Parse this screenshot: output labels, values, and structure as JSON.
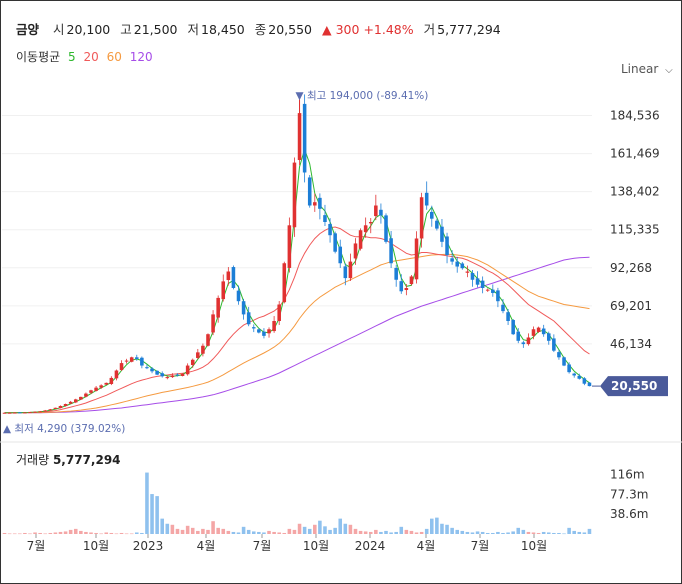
{
  "header": {
    "name": "금양",
    "open_label": "시",
    "open": "20,100",
    "high_label": "고",
    "high": "21,500",
    "low_label": "저",
    "low": "18,450",
    "close_label": "종",
    "close": "20,550",
    "change_icon": "triangle-up-icon",
    "change": "300",
    "change_pct": "+1.48%",
    "volume_label": "거",
    "volume": "5,777,294"
  },
  "ma_legend": {
    "label": "이동평균",
    "items": [
      {
        "period": "5",
        "color": "#2eb82e"
      },
      {
        "period": "20",
        "color": "#f05a5a"
      },
      {
        "period": "60",
        "color": "#f59a40"
      },
      {
        "period": "120",
        "color": "#a64de8"
      }
    ]
  },
  "scale_toggle": "Linear",
  "volume_header": {
    "label": "거래량",
    "value": "5,777,294"
  },
  "colors": {
    "up": "#e03131",
    "down": "#1c7ed6",
    "vol_up": "#f4a6a6",
    "vol_down": "#8fc1ee",
    "price_tag": "#4a5a9a",
    "annotation": "#5b6db0"
  },
  "chart_data": {
    "type": "candlestick",
    "y_ticks": [
      "184,536",
      "161,469",
      "138,402",
      "115,335",
      "92,268",
      "69,201",
      "46,134"
    ],
    "ylim": [
      0,
      200000
    ],
    "x_ticks": [
      "7월",
      "10월",
      "2023",
      "4월",
      "7월",
      "10월",
      "2024",
      "4월",
      "7월",
      "10월"
    ],
    "current_price": "20,550",
    "high_annotation": "최고 194,000 (-89.41%)",
    "low_annotation": "최저 4,290 (379.02%)",
    "volume_ticks": [
      "116m",
      "77.3m",
      "38.6m"
    ],
    "close_series": [
      4400,
      4400,
      4500,
      4500,
      4600,
      4800,
      5000,
      5300,
      5800,
      6500,
      7400,
      8500,
      9700,
      11000,
      12500,
      14000,
      16000,
      18000,
      19600,
      21000,
      22500,
      25500,
      30000,
      34500,
      36000,
      38000,
      37000,
      33000,
      31500,
      29500,
      27500,
      26500,
      26000,
      27000,
      27500,
      28000,
      33000,
      36500,
      41000,
      45000,
      52000,
      64000,
      74000,
      84000,
      90000,
      80000,
      72000,
      64000,
      58000,
      55500,
      53000,
      51000,
      55000,
      60000,
      70000,
      95000,
      118000,
      156000,
      186000,
      150000,
      130000,
      132000,
      128000,
      120000,
      112000,
      102000,
      95000,
      86000,
      96000,
      107000,
      115000,
      118000,
      120000,
      130000,
      124000,
      108000,
      95000,
      85000,
      78000,
      80000,
      87000,
      110000,
      135000,
      130000,
      122000,
      116000,
      108000,
      100000,
      96000,
      93000,
      92000,
      90000,
      85000,
      82000,
      80000,
      79000,
      77000,
      72000,
      66000,
      60000,
      52000,
      48000,
      46000,
      50000,
      55000,
      56000,
      52000,
      48000,
      42000,
      38000,
      33000,
      29000,
      27000,
      25000,
      22000,
      20550
    ],
    "ma20_series": [
      4400,
      4400,
      4400,
      4500,
      4500,
      4600,
      4700,
      4800,
      5000,
      5300,
      5700,
      6300,
      7000,
      7800,
      8600,
      9400,
      10300,
      11500,
      12600,
      13800,
      15000,
      16400,
      17800,
      19200,
      20600,
      22000,
      23200,
      24200,
      25000,
      25800,
      26400,
      26900,
      27300,
      27700,
      28000,
      28300,
      28800,
      29600,
      30600,
      32000,
      34000,
      37000,
      40500,
      44500,
      48500,
      52000,
      55000,
      57500,
      59000,
      60500,
      62000,
      63000,
      64500,
      66000,
      68500,
      73000,
      79000,
      86500,
      95000,
      101000,
      106000,
      110000,
      113000,
      115000,
      116500,
      117000,
      116000,
      114000,
      112000,
      111000,
      111000,
      111000,
      110500,
      110500,
      110000,
      109000,
      107000,
      105000,
      103000,
      101000,
      100000,
      100500,
      101500,
      101500,
      101000,
      100500,
      100000,
      99500,
      99000,
      98500,
      98000,
      97000,
      95500,
      94000,
      92500,
      90500,
      89000,
      87000,
      84500,
      82000,
      79000,
      76000,
      73000,
      70000,
      68000,
      66000,
      64000,
      62000,
      60000,
      57000,
      54000,
      51000,
      48000,
      45000,
      42000,
      40000
    ],
    "ma60_series": [
      4400,
      4400,
      4400,
      4400,
      4400,
      4500,
      4500,
      4500,
      4600,
      4700,
      4800,
      5000,
      5200,
      5400,
      5700,
      6000,
      6400,
      6800,
      7300,
      7900,
      8500,
      9200,
      9900,
      10600,
      11400,
      12200,
      13000,
      13800,
      14600,
      15300,
      16000,
      16700,
      17300,
      17900,
      18500,
      19100,
      19700,
      20400,
      21200,
      22000,
      23000,
      24300,
      25800,
      27400,
      29200,
      31000,
      32800,
      34500,
      36100,
      37600,
      39100,
      40600,
      42300,
      44200,
      46500,
      49500,
      53000,
      57000,
      61500,
      65500,
      69000,
      72000,
      74500,
      76500,
      78500,
      80500,
      82000,
      83500,
      85000,
      86500,
      88000,
      89500,
      91000,
      92500,
      94000,
      95000,
      96000,
      96500,
      97000,
      97500,
      98000,
      98500,
      99000,
      99500,
      100000,
      100200,
      100300,
      100400,
      100300,
      100000,
      99500,
      99000,
      98000,
      97000,
      95500,
      94000,
      92000,
      90000,
      88000,
      86000,
      84000,
      82000,
      80000,
      78000,
      76500,
      75000,
      74000,
      73000,
      72000,
      71000,
      70000,
      69500,
      69000,
      68500,
      68000,
      67500
    ],
    "ma120_series": [
      4400,
      4400,
      4400,
      4400,
      4400,
      4400,
      4400,
      4450,
      4500,
      4550,
      4600,
      4700,
      4800,
      4900,
      5000,
      5200,
      5400,
      5600,
      5800,
      6100,
      6400,
      6700,
      7000,
      7300,
      7700,
      8100,
      8500,
      8900,
      9300,
      9700,
      10100,
      10500,
      10900,
      11300,
      11700,
      12100,
      12500,
      13000,
      13500,
      14000,
      14600,
      15300,
      16100,
      17000,
      18000,
      19000,
      20000,
      21000,
      22000,
      23000,
      24000,
      25000,
      26000,
      27200,
      28500,
      30000,
      31500,
      33000,
      34500,
      36000,
      37500,
      39000,
      40500,
      42000,
      43500,
      45000,
      46500,
      48000,
      49500,
      51000,
      52500,
      54000,
      55500,
      57000,
      58500,
      60000,
      61500,
      63000,
      64200,
      65400,
      66600,
      67800,
      69000,
      70000,
      71000,
      72000,
      73000,
      74000,
      75000,
      76000,
      77000,
      78000,
      79000,
      80000,
      81000,
      82000,
      83000,
      84000,
      85000,
      86000,
      87000,
      88000,
      89000,
      90000,
      91000,
      92000,
      93000,
      94000,
      95000,
      96000,
      97000,
      97500,
      98000,
      98300,
      98500,
      98600
    ],
    "volume_series": [
      2,
      1,
      1,
      1,
      2,
      1,
      3,
      2,
      1,
      2,
      3,
      4,
      5,
      8,
      10,
      6,
      4,
      3,
      2,
      1,
      3,
      2,
      1,
      2,
      1,
      1,
      3,
      2,
      120,
      78,
      74,
      30,
      20,
      18,
      10,
      8,
      16,
      12,
      6,
      10,
      8,
      25,
      12,
      10,
      6,
      4,
      3,
      14,
      8,
      5,
      4,
      3,
      6,
      4,
      3,
      2,
      10,
      8,
      20,
      14,
      10,
      18,
      26,
      15,
      8,
      12,
      30,
      20,
      18,
      10,
      6,
      5,
      4,
      8,
      4,
      6,
      3,
      4,
      14,
      8,
      6,
      3,
      4,
      10,
      30,
      32,
      20,
      18,
      12,
      8,
      6,
      4,
      3,
      5,
      4,
      2,
      2,
      4,
      2,
      3,
      5,
      12,
      8,
      4,
      3,
      2,
      4,
      3,
      2,
      2,
      1,
      12,
      6,
      4,
      3,
      10
    ]
  }
}
